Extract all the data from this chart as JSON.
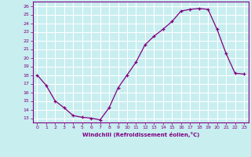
{
  "x": [
    0,
    1,
    2,
    3,
    4,
    5,
    6,
    7,
    8,
    9,
    10,
    11,
    12,
    13,
    14,
    15,
    16,
    17,
    18,
    19,
    20,
    21,
    22,
    23
  ],
  "y": [
    18,
    16.8,
    15,
    14.2,
    13.3,
    13.1,
    13.0,
    12.8,
    14.2,
    16.5,
    18.0,
    19.5,
    21.5,
    22.5,
    23.3,
    24.2,
    25.4,
    25.6,
    25.7,
    25.6,
    23.3,
    20.5,
    18.2,
    18.1
  ],
  "line_color": "#800080",
  "marker": "+",
  "marker_size": 3,
  "bg_color": "#c8eef0",
  "grid_color": "#ffffff",
  "axis_color": "#800080",
  "tick_color": "#800080",
  "xlabel": "Windchill (Refroidissement éolien,°C)",
  "ylabel_ticks": [
    13,
    14,
    15,
    16,
    17,
    18,
    19,
    20,
    21,
    22,
    23,
    24,
    25,
    26
  ],
  "ylim": [
    12.5,
    26.5
  ],
  "xlim": [
    -0.5,
    23.5
  ],
  "xticks": [
    0,
    1,
    2,
    3,
    4,
    5,
    6,
    7,
    8,
    9,
    10,
    11,
    12,
    13,
    14,
    15,
    16,
    17,
    18,
    19,
    20,
    21,
    22,
    23
  ]
}
